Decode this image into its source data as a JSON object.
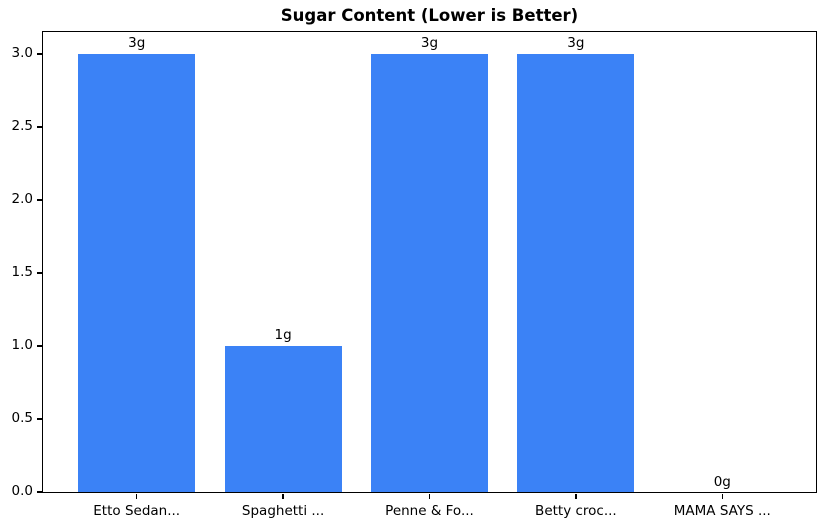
{
  "chart_data": {
    "type": "bar",
    "title": "Sugar Content (Lower is Better)",
    "categories": [
      "Etto Sedan...",
      "Spaghetti ...",
      "Penne & Fo...",
      "Betty croc...",
      "MAMA SAYS ..."
    ],
    "values": [
      3,
      1,
      3,
      3,
      0
    ],
    "bar_labels": [
      "3g",
      "1g",
      "3g",
      "3g",
      "0g"
    ],
    "bar_color": "#3b82f6",
    "text_color": "#000000",
    "xlabel": "",
    "ylabel": "",
    "ylim": [
      0,
      3.15
    ],
    "xlim": [
      -0.64,
      4.64
    ],
    "bar_width_units": 0.8,
    "yticks": [
      0.0,
      0.5,
      1.0,
      1.5,
      2.0,
      2.5,
      3.0
    ],
    "ytick_labels": [
      "0.0",
      "0.5",
      "1.0",
      "1.5",
      "2.0",
      "2.5",
      "3.0"
    ],
    "grid": false,
    "legend": null
  }
}
